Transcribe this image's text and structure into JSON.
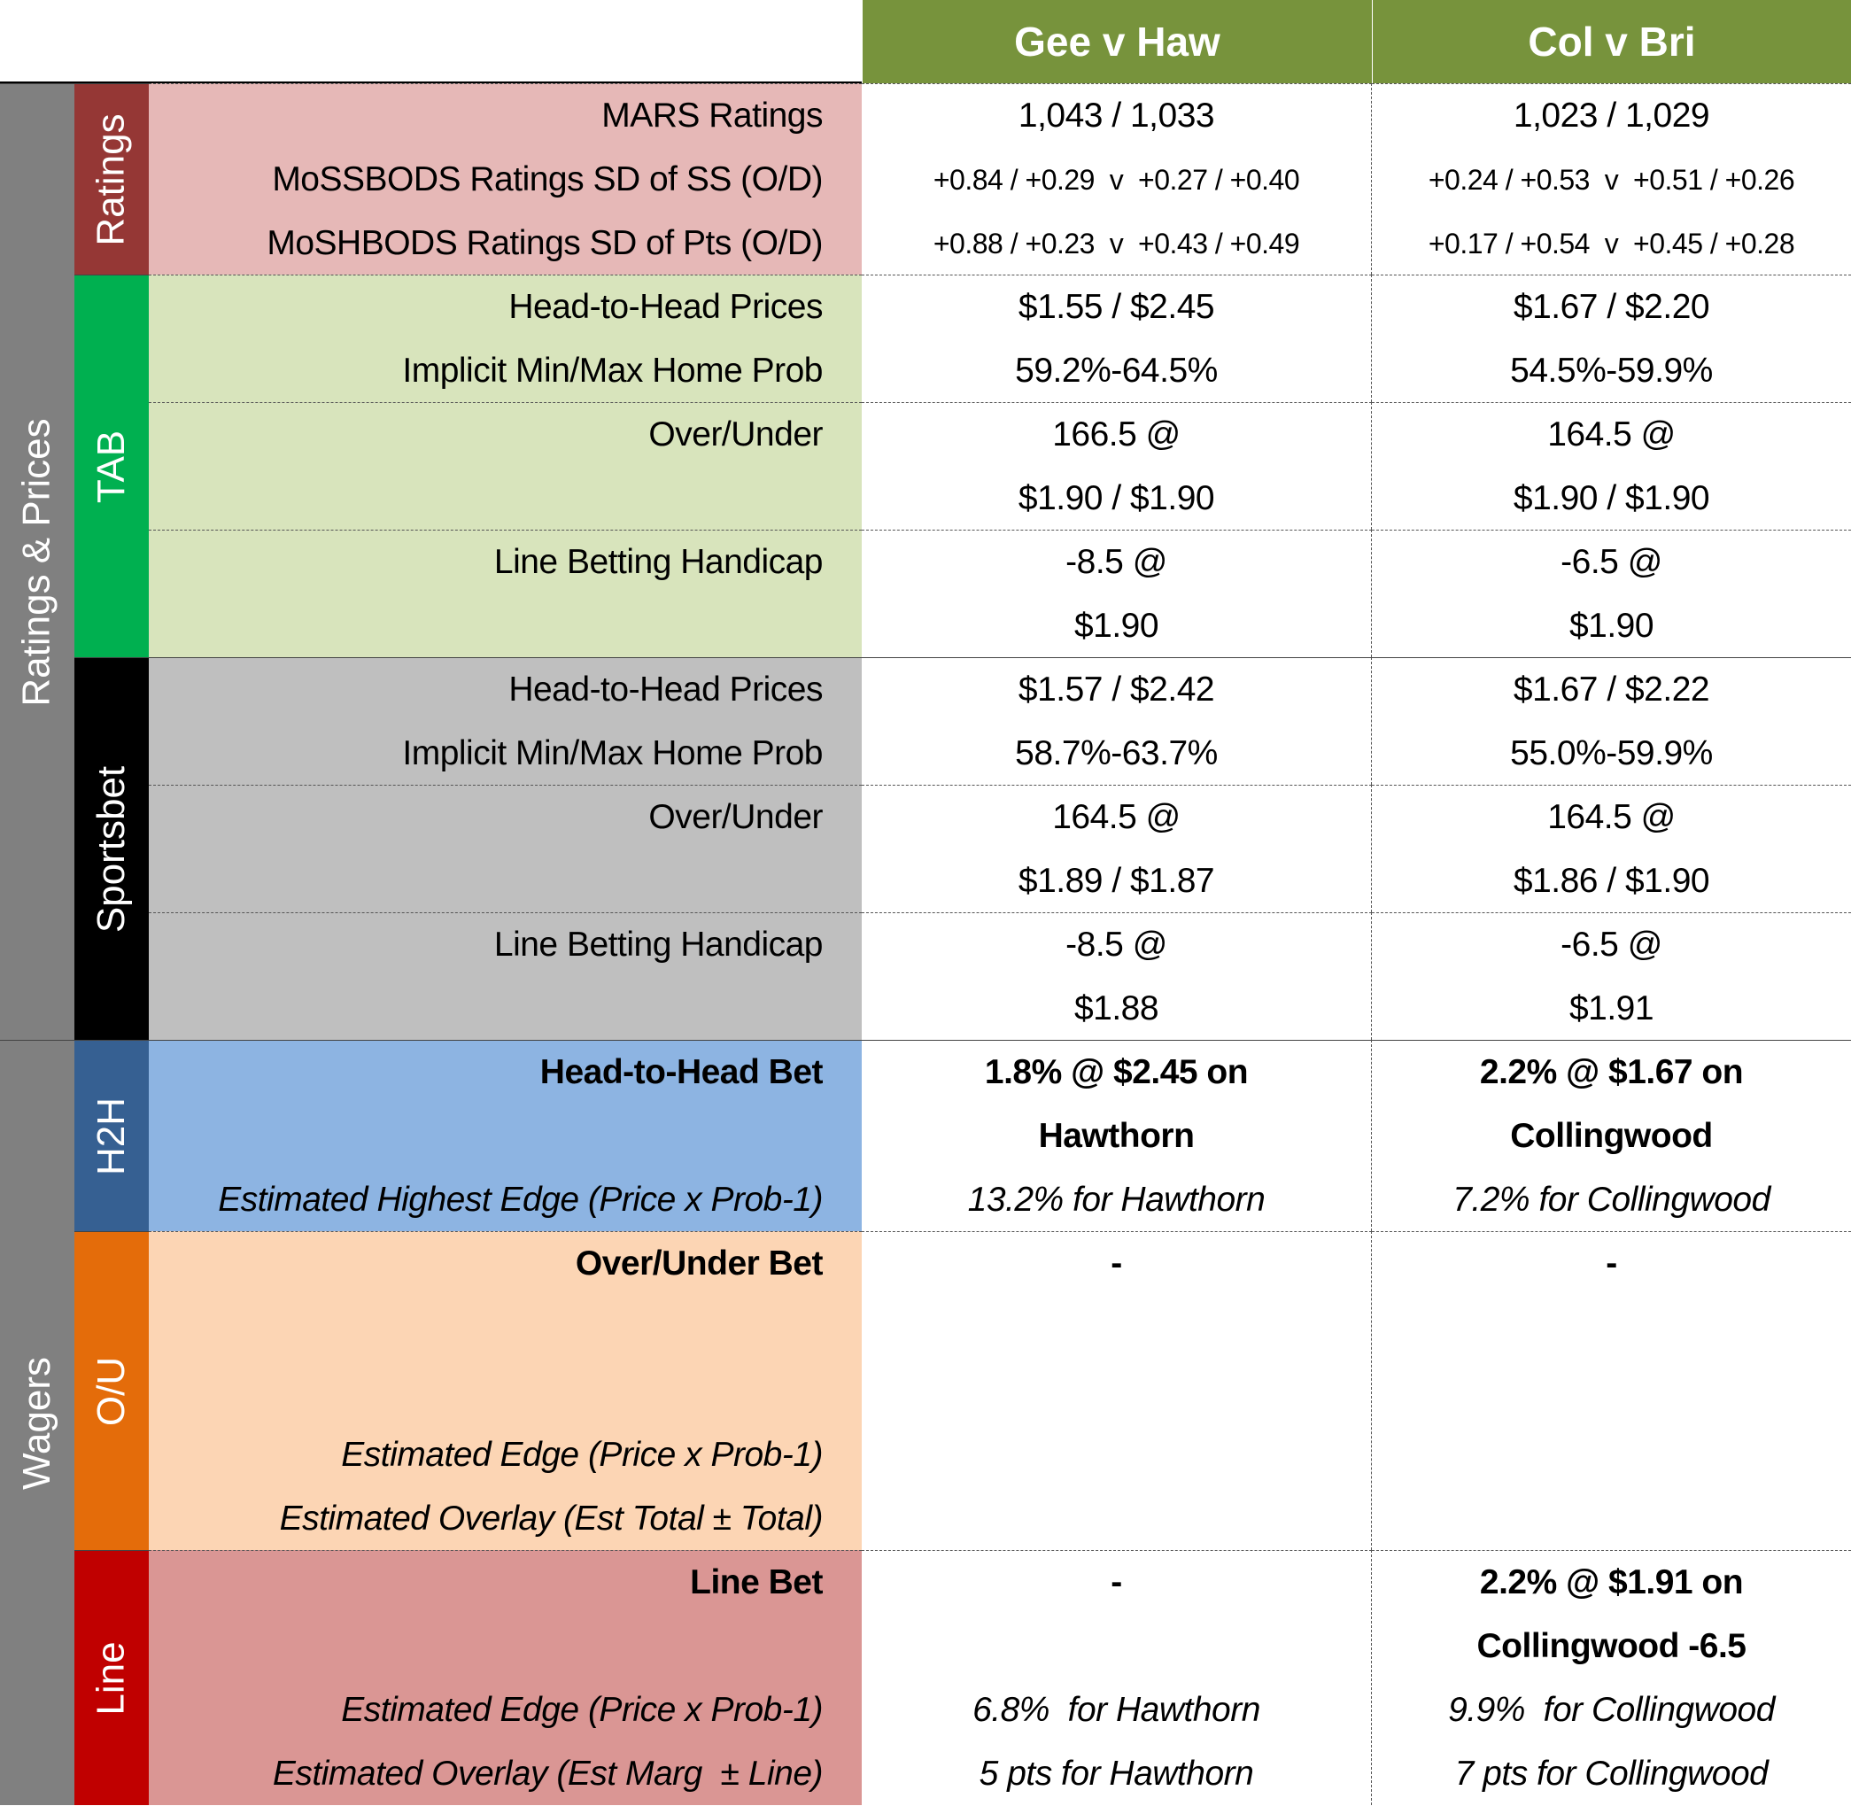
{
  "header": {
    "games": [
      "Gee v Haw",
      "Col v Bri"
    ],
    "color": "#77933C"
  },
  "groups": [
    {
      "label": "Ratings & Prices",
      "color": "#808080"
    },
    {
      "label": "Wagers",
      "color": "#808080"
    }
  ],
  "subgroups": [
    {
      "label": "Ratings",
      "color": "#953735"
    },
    {
      "label": "TAB",
      "color": "#00B050"
    },
    {
      "label": "Sportsbet",
      "color": "#000000"
    },
    {
      "label": "H2H",
      "color": "#366092"
    },
    {
      "label": "O/U",
      "color": "#E46C0A"
    },
    {
      "label": "Line",
      "color": "#C00000"
    }
  ],
  "sections": [
    {
      "bg": "#E6B8B7",
      "labels": [
        {
          "t": "MARS Ratings"
        },
        {
          "t": "MoSSBODS Ratings SD of SS (O/D)"
        },
        {
          "t": "MoSHBODS Ratings SD of Pts (O/D)"
        }
      ],
      "values": [
        [
          {
            "t": "1,043 / 1,033"
          },
          {
            "t": "+0.84 / +0.29  v  +0.27 / +0.40",
            "s": "small"
          },
          {
            "t": "+0.88 / +0.23  v  +0.43 / +0.49",
            "s": "small"
          }
        ],
        [
          {
            "t": "1,023 / 1,029"
          },
          {
            "t": "+0.24 / +0.53  v  +0.51 / +0.26",
            "s": "small"
          },
          {
            "t": "+0.17 / +0.54  v  +0.45 / +0.28",
            "s": "small"
          }
        ]
      ]
    },
    {
      "bg": "#D8E4BC",
      "labels": [
        {
          "t": "Head-to-Head Prices"
        },
        {
          "t": "Implicit Min/Max Home Prob"
        }
      ],
      "values": [
        [
          {
            "t": "$1.55 / $2.45"
          },
          {
            "t": "59.2%-64.5%"
          }
        ],
        [
          {
            "t": "$1.67 / $2.20"
          },
          {
            "t": "54.5%-59.9%"
          }
        ]
      ]
    },
    {
      "bg": "#D8E4BC",
      "labels": [
        {
          "t": "Over/Under"
        },
        {
          "t": ""
        }
      ],
      "values": [
        [
          {
            "t": "166.5 @"
          },
          {
            "t": "$1.90 / $1.90"
          }
        ],
        [
          {
            "t": "164.5 @"
          },
          {
            "t": "$1.90 / $1.90"
          }
        ]
      ]
    },
    {
      "bg": "#D8E4BC",
      "labels": [
        {
          "t": "Line Betting Handicap"
        },
        {
          "t": ""
        }
      ],
      "values": [
        [
          {
            "t": "-8.5 @"
          },
          {
            "t": "$1.90"
          }
        ],
        [
          {
            "t": "-6.5 @"
          },
          {
            "t": "$1.90"
          }
        ]
      ]
    },
    {
      "bg": "#BFBFBF",
      "solid": true,
      "labels": [
        {
          "t": "Head-to-Head Prices"
        },
        {
          "t": "Implicit Min/Max Home Prob"
        }
      ],
      "values": [
        [
          {
            "t": "$1.57 / $2.42"
          },
          {
            "t": "58.7%-63.7%"
          }
        ],
        [
          {
            "t": "$1.67 / $2.22"
          },
          {
            "t": "55.0%-59.9%"
          }
        ]
      ]
    },
    {
      "bg": "#BFBFBF",
      "labels": [
        {
          "t": "Over/Under"
        },
        {
          "t": ""
        }
      ],
      "values": [
        [
          {
            "t": "164.5 @"
          },
          {
            "t": "$1.89 / $1.87"
          }
        ],
        [
          {
            "t": "164.5 @"
          },
          {
            "t": "$1.86 / $1.90"
          }
        ]
      ]
    },
    {
      "bg": "#BFBFBF",
      "labels": [
        {
          "t": "Line Betting Handicap"
        },
        {
          "t": ""
        }
      ],
      "values": [
        [
          {
            "t": "-8.5 @"
          },
          {
            "t": "$1.88"
          }
        ],
        [
          {
            "t": "-6.5 @"
          },
          {
            "t": "$1.91"
          }
        ]
      ]
    },
    {
      "bg": "#8DB4E2",
      "solid": true,
      "labels": [
        {
          "t": "Head-to-Head Bet",
          "s": "b"
        },
        {
          "t": ""
        },
        {
          "t": "Estimated Highest Edge (Price x Prob-1)",
          "s": "i"
        }
      ],
      "values": [
        [
          {
            "t": "1.8% @ $2.45 on",
            "s": "b"
          },
          {
            "t": "Hawthorn",
            "s": "b"
          },
          {
            "t": "13.2% for Hawthorn",
            "s": "i"
          }
        ],
        [
          {
            "t": "2.2% @ $1.67 on",
            "s": "b"
          },
          {
            "t": "Collingwood",
            "s": "b"
          },
          {
            "t": "7.2% for Collingwood",
            "s": "i"
          }
        ]
      ]
    },
    {
      "bg": "#FCD5B4",
      "labels": [
        {
          "t": "Over/Under Bet",
          "s": "b"
        },
        {
          "t": ""
        },
        {
          "t": ""
        },
        {
          "t": "Estimated Edge (Price x Prob-1)",
          "s": "i"
        },
        {
          "t": "Estimated Overlay (Est Total ± Total)",
          "s": "i"
        }
      ],
      "values": [
        [
          {
            "t": "-",
            "s": "b"
          },
          {
            "t": ""
          },
          {
            "t": ""
          },
          {
            "t": ""
          },
          {
            "t": ""
          }
        ],
        [
          {
            "t": "-",
            "s": "b"
          },
          {
            "t": ""
          },
          {
            "t": ""
          },
          {
            "t": ""
          },
          {
            "t": ""
          }
        ]
      ]
    },
    {
      "bg": "#DA9694",
      "labels": [
        {
          "t": "Line Bet",
          "s": "b"
        },
        {
          "t": ""
        },
        {
          "t": "Estimated Edge (Price x Prob-1)",
          "s": "i"
        },
        {
          "t": "Estimated Overlay (Est Marg  ± Line)",
          "s": "i"
        }
      ],
      "values": [
        [
          {
            "t": "-",
            "s": "b"
          },
          {
            "t": ""
          },
          {
            "t": "6.8%  for Hawthorn",
            "s": "i"
          },
          {
            "t": "5 pts for Hawthorn",
            "s": "i"
          }
        ],
        [
          {
            "t": "2.2% @ $1.91 on",
            "s": "b"
          },
          {
            "t": "Collingwood -6.5",
            "s": "b"
          },
          {
            "t": "9.9%  for Collingwood",
            "s": "i"
          },
          {
            "t": "7 pts for Collingwood",
            "s": "i"
          }
        ]
      ]
    }
  ]
}
